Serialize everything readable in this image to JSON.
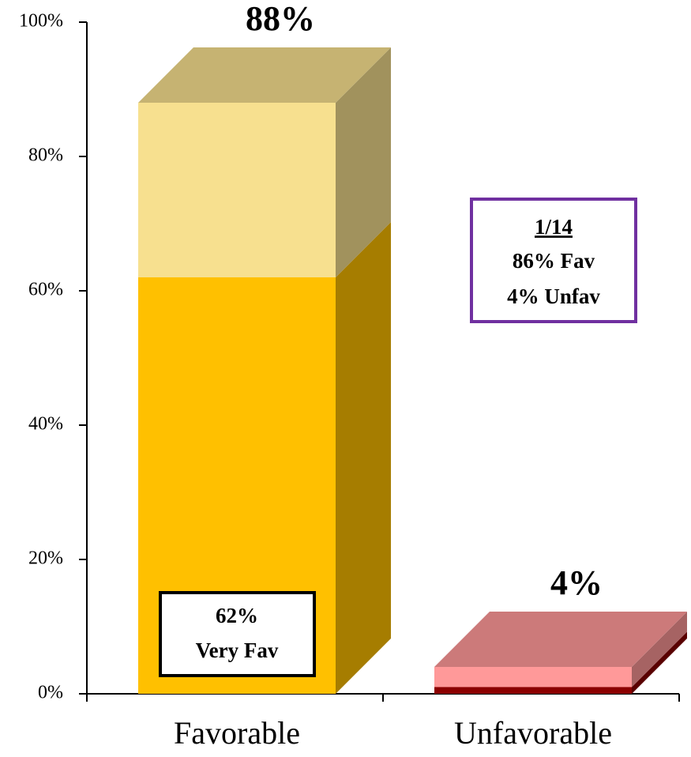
{
  "chart_data": {
    "type": "bar",
    "stacked": true,
    "categories": [
      "Favorable",
      "Unfavorable"
    ],
    "series": [
      {
        "colors": [
          "#ffc000",
          "#8b0000"
        ],
        "values": [
          62,
          1
        ]
      },
      {
        "colors": [
          "#f7e08f",
          "#ff9999"
        ],
        "values": [
          26,
          3
        ]
      }
    ],
    "totals": [
      88,
      4
    ],
    "total_labels": [
      "88%",
      "4%"
    ],
    "ylim": [
      0,
      100
    ],
    "yticks": [
      {
        "value": 0,
        "label": "0%"
      },
      {
        "value": 20,
        "label": "20%"
      },
      {
        "value": 40,
        "label": "40%"
      },
      {
        "value": 60,
        "label": "60%"
      },
      {
        "value": 80,
        "label": "80%"
      },
      {
        "value": 100,
        "label": "100%"
      }
    ],
    "annotations": [
      {
        "lines": [
          "62%",
          "Very Fav"
        ]
      },
      {
        "lines": [
          "1/14",
          "86% Fav",
          "4% Unfav"
        ]
      }
    ]
  }
}
